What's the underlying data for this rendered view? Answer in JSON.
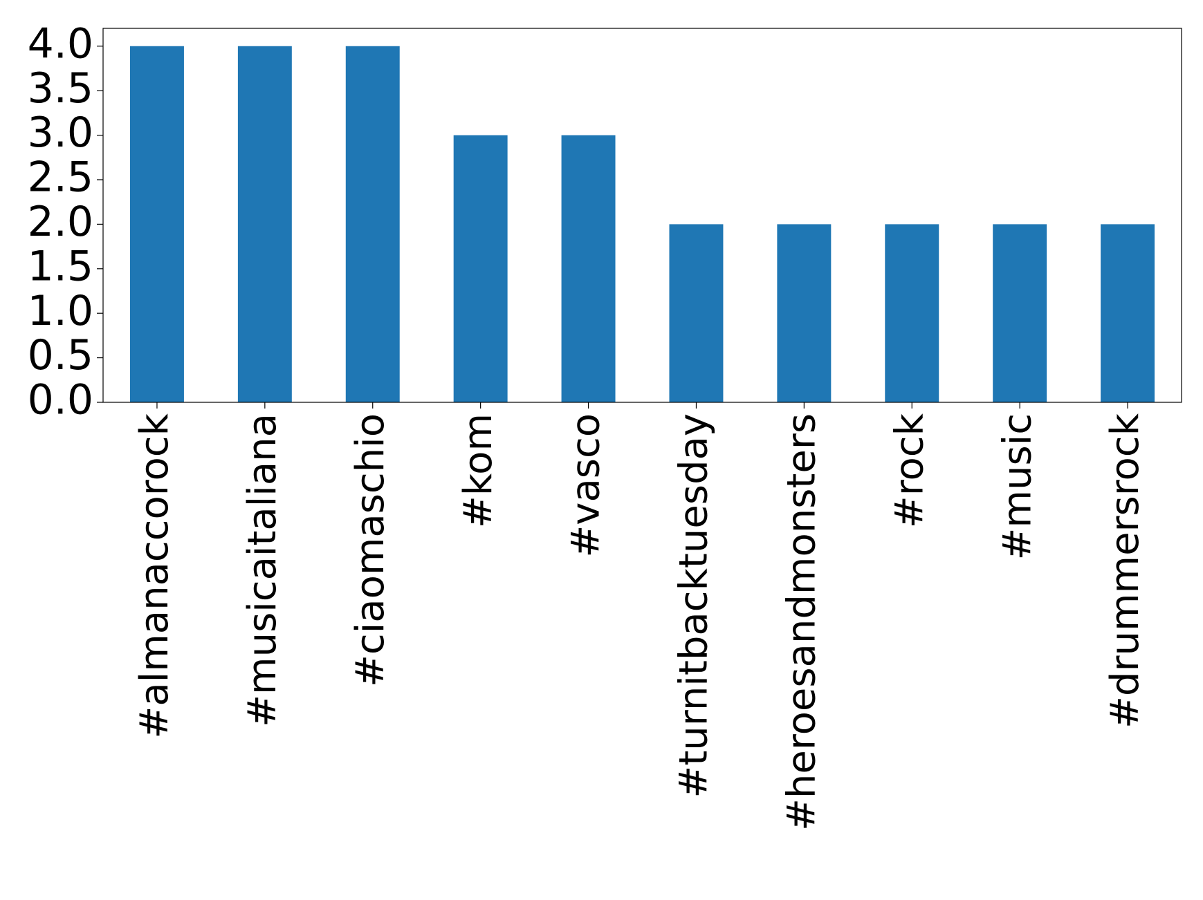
{
  "chart_data": {
    "type": "bar",
    "categories": [
      "#almanaccorock",
      "#musicaitaliana",
      "#ciaomaschio",
      "#kom",
      "#vasco",
      "#turnitbacktuesday",
      "#heroesandmonsters",
      "#rock",
      "#music",
      "#drummersrock"
    ],
    "values": [
      4,
      4,
      4,
      3,
      3,
      2,
      2,
      2,
      2,
      2
    ],
    "color": "#1f77b4",
    "ylim": [
      0,
      4.2
    ],
    "yticks": [
      {
        "value": 0,
        "label": "0.0"
      },
      {
        "value": 0.5,
        "label": "0.5"
      },
      {
        "value": 1,
        "label": "1.0"
      },
      {
        "value": 1.5,
        "label": "1.5"
      },
      {
        "value": 2,
        "label": "2.0"
      },
      {
        "value": 2.5,
        "label": "2.5"
      },
      {
        "value": 3,
        "label": "3.0"
      },
      {
        "value": 3.5,
        "label": "3.5"
      },
      {
        "value": 4,
        "label": "4.0"
      }
    ],
    "grid": false
  }
}
